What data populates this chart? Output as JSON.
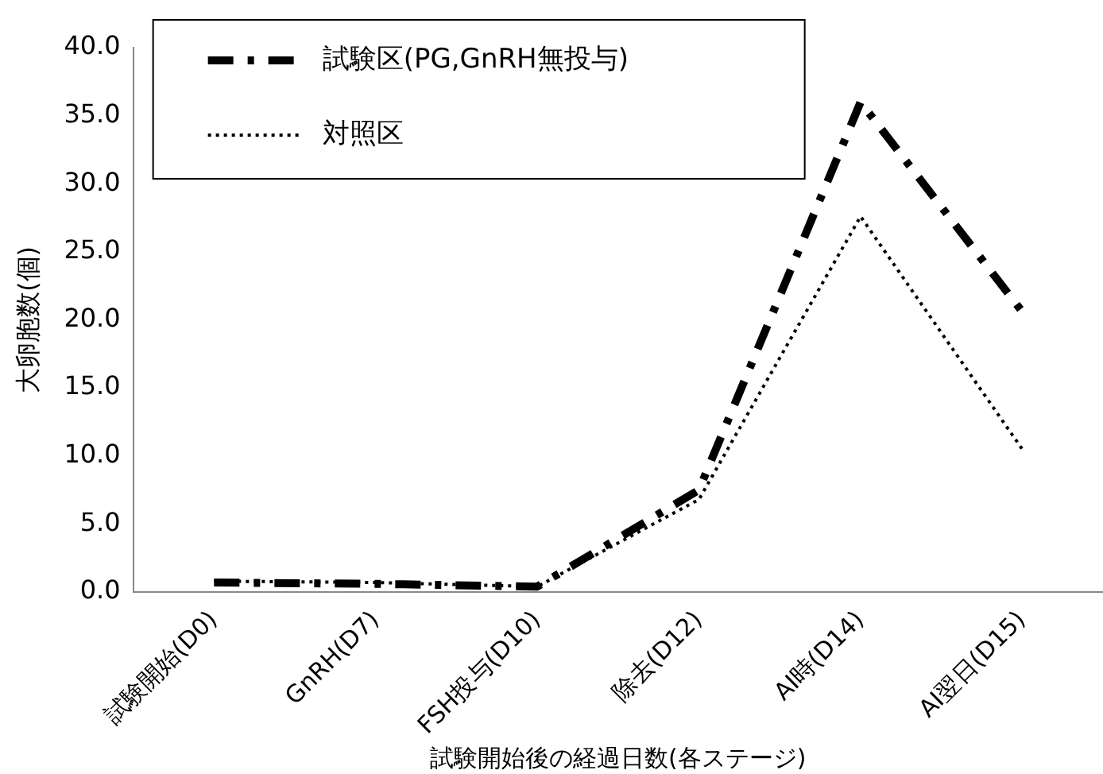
{
  "chart_data": {
    "type": "line",
    "xlabel": "試験開始後の経過日数(各ステージ)",
    "ylabel": "大卵胞数(個)",
    "categories": [
      "試験開始(D0)",
      "GnRH(D7)",
      "FSH投与(D10)",
      "除去(D12)",
      "AI時(D14)",
      "AI翌日(D15)"
    ],
    "series": [
      {
        "name": "試験区(PG,GnRH無投与)",
        "color": "#000000",
        "line_style": "dashed",
        "values": [
          0.7,
          0.6,
          0.4,
          7.5,
          36.0,
          20.6
        ]
      },
      {
        "name": "対照区",
        "color": "#000000",
        "line_style": "dotted",
        "values": [
          0.8,
          0.7,
          0.4,
          6.8,
          27.6,
          10.5
        ]
      }
    ],
    "ylim": [
      0,
      40
    ],
    "yticks": [
      {
        "value": 0,
        "label": "0.0"
      },
      {
        "value": 5,
        "label": "5.0"
      },
      {
        "value": 10,
        "label": "10.0"
      },
      {
        "value": 15,
        "label": "15.0"
      },
      {
        "value": 20,
        "label": "20.0"
      },
      {
        "value": 25,
        "label": "25.0"
      },
      {
        "value": 30,
        "label": "30.0"
      },
      {
        "value": 35,
        "label": "35.0"
      },
      {
        "value": 40,
        "label": "40.0"
      }
    ],
    "grid": false,
    "legend": "top left",
    "marker": "none"
  }
}
